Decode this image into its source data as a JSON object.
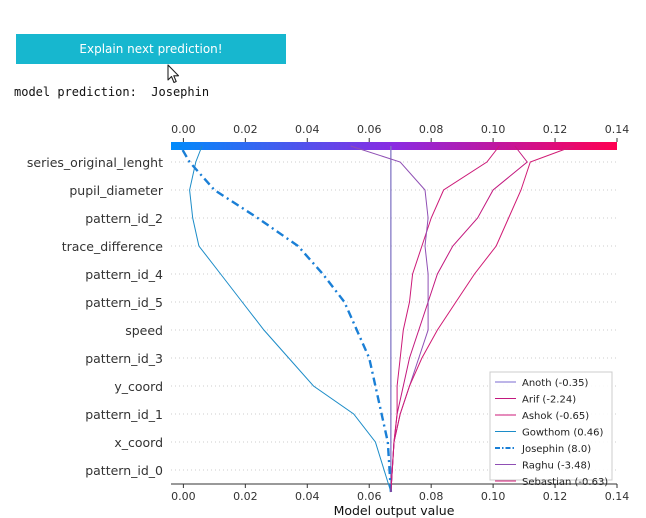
{
  "button": {
    "label": "Explain next prediction!"
  },
  "prediction": {
    "label": "model prediction:",
    "value": "Josephin"
  },
  "icons": {
    "cursor": "mouse-pointer-icon"
  },
  "chart_data": {
    "type": "line",
    "orientation": "decision-plot",
    "xlabel": "Model output value",
    "xlim": [
      -0.004,
      0.14
    ],
    "x_ticks": [
      0.0,
      0.02,
      0.04,
      0.06,
      0.08,
      0.1,
      0.12,
      0.14
    ],
    "x_tick_labels": [
      "0.00",
      "0.02",
      "0.04",
      "0.06",
      "0.08",
      "0.10",
      "0.12",
      "0.14"
    ],
    "base_value": 0.067,
    "features": [
      "series_original_lenght",
      "pupil_diameter",
      "pattern_id_2",
      "trace_difference",
      "pattern_id_4",
      "pattern_id_5",
      "speed",
      "pattern_id_3",
      "y_coord",
      "pattern_id_1",
      "x_coord",
      "pattern_id_0"
    ],
    "colorbar": {
      "from": "#008bfb",
      "mid": "#8a2be2",
      "to": "#ff0051"
    },
    "legend_position": "lower-right",
    "grid": true,
    "series": [
      {
        "name": "Anoth (-0.35)",
        "color": "#7b6bd0",
        "style": "solid",
        "values": [
          0.067,
          0.067,
          0.067,
          0.067,
          0.067,
          0.067,
          0.067,
          0.067,
          0.067,
          0.067,
          0.067,
          0.067,
          0.067
        ]
      },
      {
        "name": "Arif (-2.24)",
        "color": "#c2187e",
        "style": "solid",
        "values": [
          0.067,
          0.068,
          0.069,
          0.071,
          0.073,
          0.076,
          0.079,
          0.082,
          0.087,
          0.095,
          0.1,
          0.111,
          0.107
        ]
      },
      {
        "name": "Ashok (-0.65)",
        "color": "#cc1a78",
        "style": "solid",
        "values": [
          0.067,
          0.068,
          0.069,
          0.069,
          0.07,
          0.071,
          0.073,
          0.074,
          0.077,
          0.08,
          0.084,
          0.098,
          0.102
        ]
      },
      {
        "name": "Gowthom (0.46)",
        "color": "#1c8cc8",
        "style": "solid",
        "values": [
          0.067,
          0.062,
          0.055,
          0.042,
          0.034,
          0.026,
          0.019,
          0.012,
          0.005,
          0.003,
          0.002,
          0.004,
          0.006
        ]
      },
      {
        "name": "Josephin (8.0)",
        "color": "#1a7fd6",
        "style": "dashdot",
        "values": [
          0.067,
          0.066,
          0.064,
          0.062,
          0.06,
          0.056,
          0.052,
          0.045,
          0.037,
          0.024,
          0.01,
          0.002,
          -0.001
        ]
      },
      {
        "name": "Raghu (-3.48)",
        "color": "#8f4fb4",
        "style": "solid",
        "values": [
          0.067,
          0.068,
          0.07,
          0.073,
          0.076,
          0.079,
          0.079,
          0.079,
          0.078,
          0.079,
          0.078,
          0.07,
          0.054
        ]
      },
      {
        "name": "Sebastian (-0.63)",
        "color": "#d01a74",
        "style": "solid",
        "values": [
          0.067,
          0.068,
          0.07,
          0.073,
          0.077,
          0.082,
          0.088,
          0.094,
          0.101,
          0.105,
          0.109,
          0.112,
          0.126
        ]
      }
    ]
  }
}
